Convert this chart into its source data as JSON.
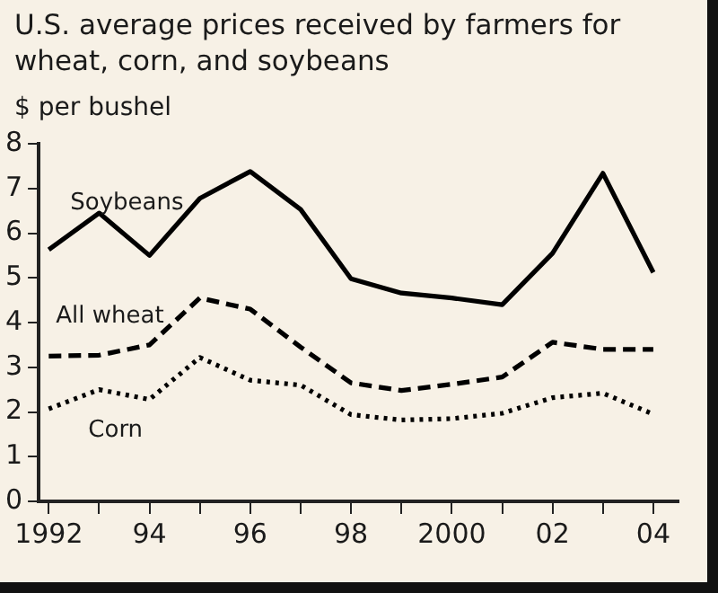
{
  "chart_data": {
    "type": "line",
    "title": "U.S. average prices received by farmers for wheat, corn, and soybeans",
    "ylabel": "$ per bushel",
    "x": [
      1992,
      1993,
      1994,
      1995,
      1996,
      1997,
      1998,
      1999,
      2000,
      2001,
      2002,
      2003,
      2004
    ],
    "series": [
      {
        "name": "Soybeans",
        "color": "#000000",
        "line_style": "solid",
        "values": [
          5.63,
          6.45,
          5.5,
          6.78,
          7.38,
          6.53,
          4.98,
          4.66,
          4.55,
          4.4,
          5.55,
          7.34,
          5.12
        ]
      },
      {
        "name": "All wheat",
        "color": "#000000",
        "line_style": "dashed",
        "values": [
          3.25,
          3.27,
          3.5,
          4.55,
          4.3,
          3.45,
          2.65,
          2.48,
          2.62,
          2.78,
          3.56,
          3.4,
          3.4
        ]
      },
      {
        "name": "Corn",
        "color": "#000000",
        "line_style": "dotted",
        "values": [
          2.07,
          2.5,
          2.28,
          3.22,
          2.71,
          2.6,
          1.94,
          1.82,
          1.85,
          1.97,
          2.32,
          2.42,
          1.95
        ]
      }
    ],
    "xlim": [
      1991.8,
      2004.5
    ],
    "ylim": [
      0,
      8
    ],
    "xticks": [
      {
        "value": 1992,
        "label": "1992"
      },
      {
        "value": 1993,
        "label": null
      },
      {
        "value": 1994,
        "label": "94"
      },
      {
        "value": 1995,
        "label": null
      },
      {
        "value": 1996,
        "label": "96"
      },
      {
        "value": 1997,
        "label": null
      },
      {
        "value": 1998,
        "label": "98"
      },
      {
        "value": 1999,
        "label": null
      },
      {
        "value": 2000,
        "label": "2000"
      },
      {
        "value": 2001,
        "label": null
      },
      {
        "value": 2002,
        "label": "02"
      },
      {
        "value": 2003,
        "label": null
      },
      {
        "value": 2004,
        "label": "04"
      }
    ],
    "yticks": [
      0,
      1,
      2,
      3,
      4,
      5,
      6,
      7,
      8
    ],
    "grid": false,
    "legend": false,
    "marker": "none"
  }
}
